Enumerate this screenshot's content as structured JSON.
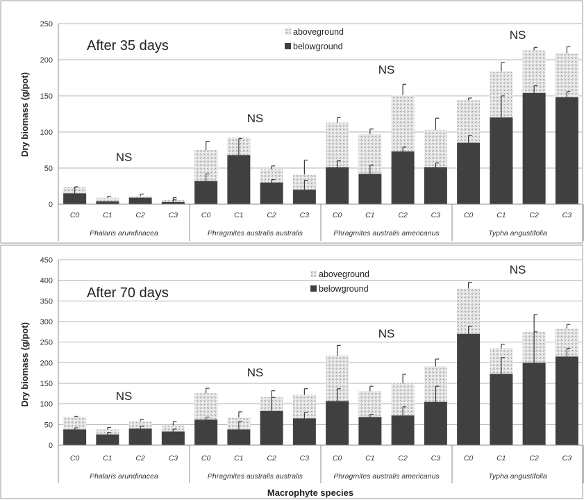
{
  "colors": {
    "belowground": "#404040",
    "aboveground_pattern": "crosshatch light gray",
    "grid": "#b3b3b3",
    "panel_border": "#999999"
  },
  "xlabel": "Macrophyte species",
  "chart_data": [
    {
      "type": "bar",
      "stacked": true,
      "title": "After 35 days",
      "ylabel": "Dry biomass (g/pot)",
      "ylim": [
        0,
        250
      ],
      "yticks": [
        "0",
        "50",
        "100",
        "150",
        "200",
        "250"
      ],
      "grid": true,
      "legend": "top-center",
      "groups": [
        "Phalaris arundinacea",
        "Phragmites australis australis",
        "Phragmites australis americanus",
        "Typha angustifolia"
      ],
      "categories": [
        "C0",
        "C1",
        "C2",
        "C3"
      ],
      "annotations": [
        "NS",
        "NS",
        "NS",
        "NS"
      ],
      "series": [
        {
          "name": "belowground",
          "values": [
            [
              15,
              4,
              9,
              3
            ],
            [
              32,
              68,
              30,
              20
            ],
            [
              51,
              42,
              73,
              51
            ],
            [
              85,
              120,
              154,
              148
            ]
          ],
          "error": [
            [
              9,
              0,
              0,
              3
            ],
            [
              10,
              23,
              4,
              13
            ],
            [
              9,
              12,
              6,
              6
            ],
            [
              10,
              30,
              10,
              8
            ]
          ]
        },
        {
          "name": "aboveground",
          "values": [
            [
              9,
              5,
              2,
              3
            ],
            [
              43,
              24,
              18,
              21
            ],
            [
              62,
              55,
              78,
              52
            ],
            [
              59,
              64,
              59,
              61
            ]
          ],
          "error": [
            [
              0,
              2,
              3,
              3
            ],
            [
              12,
              0,
              5,
              20
            ],
            [
              7,
              7,
              15,
              16
            ],
            [
              3,
              12,
              4,
              9
            ]
          ]
        }
      ]
    },
    {
      "type": "bar",
      "stacked": true,
      "title": "After 70 days",
      "ylabel": "Dry biomass (g/pot)",
      "ylim": [
        0,
        450
      ],
      "yticks": [
        "0",
        "50",
        "100",
        "150",
        "200",
        "250",
        "300",
        "350",
        "400",
        "450"
      ],
      "grid": true,
      "legend": "top-center",
      "groups": [
        "Phalaris arundinacea",
        "Phragmites australis australis",
        "Phragmites australis americanus",
        "Typha angustifolia"
      ],
      "categories": [
        "C0",
        "C1",
        "C2",
        "C3"
      ],
      "annotations": [
        "NS",
        "NS",
        "NS",
        "NS"
      ],
      "series": [
        {
          "name": "belowground",
          "values": [
            [
              38,
              26,
              40,
              33
            ],
            [
              62,
              38,
              83,
              65
            ],
            [
              107,
              68,
              72,
              105
            ],
            [
              270,
              173,
              200,
              215
            ]
          ],
          "error": [
            [
              4,
              5,
              6,
              6
            ],
            [
              6,
              20,
              33,
              14
            ],
            [
              30,
              7,
              21,
              38
            ],
            [
              18,
              40,
              75,
              20
            ]
          ]
        },
        {
          "name": "aboveground",
          "values": [
            [
              30,
              12,
              18,
              15
            ],
            [
              64,
              29,
              34,
              57
            ],
            [
              110,
              63,
              78,
              86
            ],
            [
              110,
              62,
              75,
              68
            ]
          ],
          "error": [
            [
              2,
              5,
              4,
              9
            ],
            [
              12,
              14,
              15,
              15
            ],
            [
              25,
              12,
              22,
              18
            ],
            [
              15,
              10,
              42,
              10
            ]
          ]
        }
      ]
    }
  ]
}
